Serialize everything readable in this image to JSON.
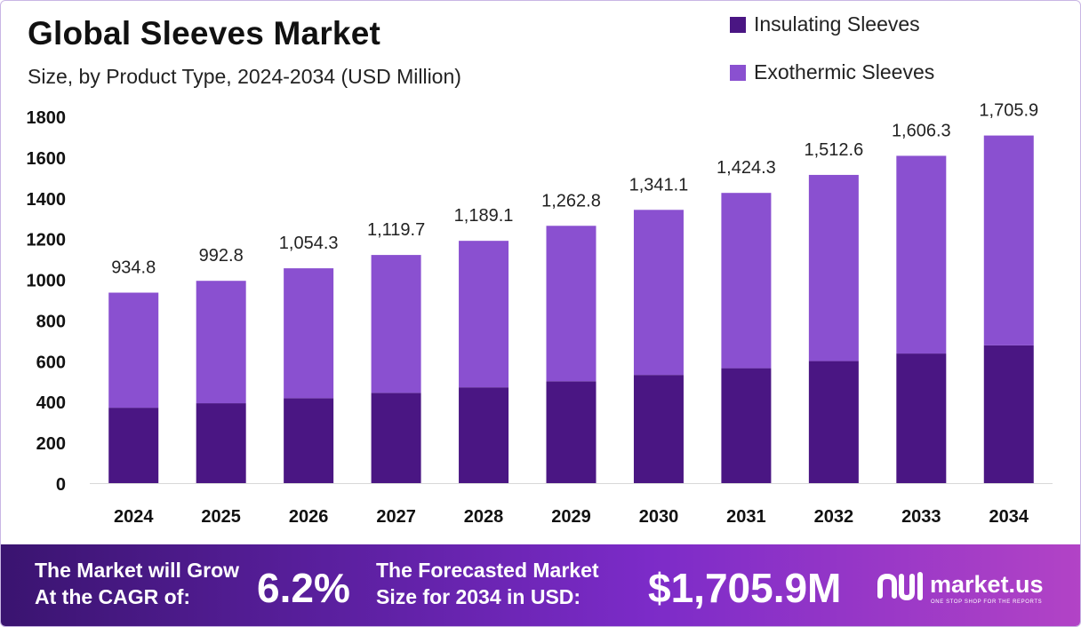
{
  "title": "Global Sleeves Market",
  "subtitle": "Size, by Product Type, 2024-2034 (USD Million)",
  "colors": {
    "insulating": "#4a1683",
    "exothermic": "#8a50d0",
    "axis_text": "#111111",
    "grid": "#d9d9d9"
  },
  "chart_data": {
    "type": "bar",
    "stacked": true,
    "categories": [
      "2024",
      "2025",
      "2026",
      "2027",
      "2028",
      "2029",
      "2030",
      "2031",
      "2032",
      "2033",
      "2034"
    ],
    "series": [
      {
        "name": "Insulating Sleeves",
        "values": [
          370,
          392,
          417,
          443,
          470,
          500,
          531,
          564,
          599,
          636,
          676
        ]
      },
      {
        "name": "Exothermic Sleeves",
        "values": [
          564.8,
          600.8,
          637.3,
          676.7,
          719.1,
          762.8,
          810.1,
          860.3,
          913.6,
          970.3,
          1029.9
        ]
      }
    ],
    "totals_labels": [
      "934.8",
      "992.8",
      "1,054.3",
      "1,119.7",
      "1,189.1",
      "1,262.8",
      "1,341.1",
      "1,424.3",
      "1,512.6",
      "1,606.3",
      "1,705.9"
    ],
    "yticks": [
      0,
      200,
      400,
      600,
      800,
      1000,
      1200,
      1400,
      1600,
      1800
    ],
    "ylim": [
      0,
      1800
    ],
    "legend_position": "top-right"
  },
  "footer": {
    "cagr_label_1": "The Market will Grow",
    "cagr_label_2": "At the CAGR of:",
    "cagr_value": "6.2%",
    "forecast_label_1": "The Forecasted Market",
    "forecast_label_2": "Size for 2034 in USD:",
    "forecast_value": "$1,705.9M",
    "brand_name": "market.us",
    "brand_tagline": "ONE STOP SHOP FOR THE REPORTS"
  }
}
